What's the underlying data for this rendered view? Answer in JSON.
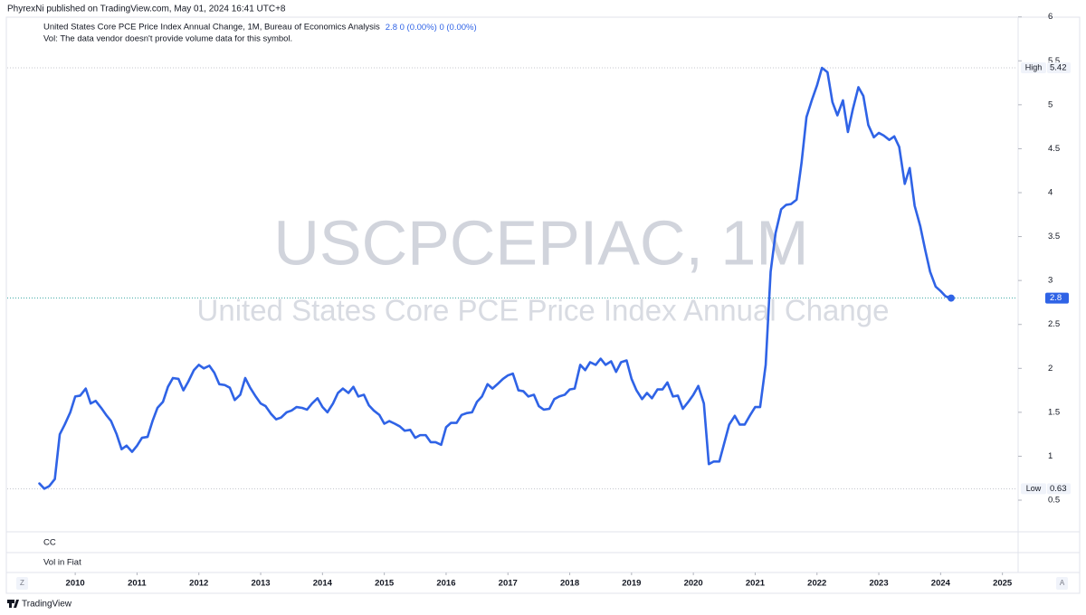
{
  "header": "PhyrexNi published on TradingView.com, May 01, 2024 16:41 UTC+8",
  "chart_data": {
    "type": "line",
    "title": "United States Core PCE Price Index Annual Change, 1M, Bureau of Economics Analysis",
    "legend_stats": [
      "0 (0.00%)",
      "0 (0.00%)"
    ],
    "subtitle": "Vol: The data vendor doesn't provide volume data for this symbol.",
    "watermark": [
      "USCPCEPIAC, 1M",
      "United States Core PCE Price Index Annual Change"
    ],
    "x": [
      2009.42,
      2009.5,
      2009.58,
      2009.67,
      2009.75,
      2009.83,
      2009.92,
      2010,
      2010.08,
      2010.17,
      2010.25,
      2010.33,
      2010.42,
      2010.5,
      2010.58,
      2010.67,
      2010.75,
      2010.83,
      2010.92,
      2011,
      2011.08,
      2011.17,
      2011.25,
      2011.33,
      2011.42,
      2011.5,
      2011.58,
      2011.67,
      2011.75,
      2011.83,
      2011.92,
      2012,
      2012.08,
      2012.17,
      2012.25,
      2012.33,
      2012.42,
      2012.5,
      2012.58,
      2012.67,
      2012.75,
      2012.83,
      2012.92,
      2013,
      2013.08,
      2013.17,
      2013.25,
      2013.33,
      2013.42,
      2013.5,
      2013.58,
      2013.67,
      2013.75,
      2013.83,
      2013.92,
      2014,
      2014.08,
      2014.17,
      2014.25,
      2014.33,
      2014.42,
      2014.5,
      2014.58,
      2014.67,
      2014.75,
      2014.83,
      2014.92,
      2015,
      2015.08,
      2015.17,
      2015.25,
      2015.33,
      2015.42,
      2015.5,
      2015.58,
      2015.67,
      2015.75,
      2015.83,
      2015.92,
      2016,
      2016.08,
      2016.17,
      2016.25,
      2016.33,
      2016.42,
      2016.5,
      2016.58,
      2016.67,
      2016.75,
      2016.83,
      2016.92,
      2017,
      2017.08,
      2017.17,
      2017.25,
      2017.33,
      2017.42,
      2017.5,
      2017.58,
      2017.67,
      2017.75,
      2017.83,
      2017.92,
      2018,
      2018.08,
      2018.17,
      2018.25,
      2018.33,
      2018.42,
      2018.5,
      2018.58,
      2018.67,
      2018.75,
      2018.83,
      2018.92,
      2019,
      2019.08,
      2019.17,
      2019.25,
      2019.33,
      2019.42,
      2019.5,
      2019.58,
      2019.67,
      2019.75,
      2019.83,
      2019.92,
      2020,
      2020.08,
      2020.17,
      2020.25,
      2020.33,
      2020.42,
      2020.5,
      2020.58,
      2020.67,
      2020.75,
      2020.83,
      2020.92,
      2021,
      2021.08,
      2021.17,
      2021.25,
      2021.33,
      2021.42,
      2021.5,
      2021.58,
      2021.67,
      2021.75,
      2021.83,
      2021.92,
      2022,
      2022.08,
      2022.17,
      2022.25,
      2022.33,
      2022.42,
      2022.5,
      2022.58,
      2022.67,
      2022.75,
      2022.83,
      2022.92,
      2023,
      2023.08,
      2023.17,
      2023.25,
      2023.33,
      2023.42,
      2023.5,
      2023.58,
      2023.67,
      2023.75,
      2023.83,
      2023.92,
      2024,
      2024.08,
      2024.17
    ],
    "series": [
      {
        "color": "#2f63e6",
        "values": [
          0.69,
          0.63,
          0.66,
          0.74,
          1.25,
          1.36,
          1.5,
          1.68,
          1.69,
          1.77,
          1.6,
          1.63,
          1.55,
          1.47,
          1.4,
          1.25,
          1.08,
          1.12,
          1.05,
          1.12,
          1.21,
          1.22,
          1.4,
          1.55,
          1.62,
          1.79,
          1.89,
          1.88,
          1.75,
          1.85,
          1.98,
          2.04,
          2.0,
          2.03,
          1.95,
          1.82,
          1.81,
          1.78,
          1.64,
          1.7,
          1.89,
          1.78,
          1.68,
          1.6,
          1.57,
          1.48,
          1.42,
          1.44,
          1.5,
          1.52,
          1.56,
          1.55,
          1.53,
          1.6,
          1.66,
          1.56,
          1.5,
          1.6,
          1.72,
          1.77,
          1.72,
          1.79,
          1.68,
          1.7,
          1.58,
          1.52,
          1.47,
          1.37,
          1.4,
          1.37,
          1.34,
          1.29,
          1.3,
          1.21,
          1.24,
          1.24,
          1.16,
          1.16,
          1.13,
          1.33,
          1.38,
          1.38,
          1.47,
          1.49,
          1.5,
          1.62,
          1.68,
          1.82,
          1.77,
          1.82,
          1.88,
          1.92,
          1.94,
          1.75,
          1.74,
          1.68,
          1.7,
          1.57,
          1.53,
          1.54,
          1.65,
          1.68,
          1.7,
          1.76,
          1.77,
          2.04,
          1.98,
          2.07,
          2.04,
          2.11,
          2.04,
          2.08,
          1.96,
          2.07,
          2.09,
          1.88,
          1.75,
          1.65,
          1.72,
          1.66,
          1.76,
          1.76,
          1.84,
          1.68,
          1.69,
          1.54,
          1.62,
          1.7,
          1.8,
          1.6,
          0.91,
          0.94,
          0.94,
          1.15,
          1.36,
          1.46,
          1.36,
          1.36,
          1.47,
          1.56,
          1.56,
          2.04,
          3.1,
          3.54,
          3.81,
          3.86,
          3.87,
          3.92,
          4.34,
          4.86,
          5.06,
          5.22,
          5.42,
          5.37,
          5.03,
          4.88,
          5.05,
          4.69,
          4.95,
          5.2,
          5.1,
          4.77,
          4.63,
          4.68,
          4.65,
          4.6,
          4.64,
          4.52,
          4.1,
          4.28,
          3.85,
          3.62,
          3.35,
          3.1,
          2.93,
          2.88,
          2.82,
          2.8
        ]
      }
    ],
    "xlim": [
      2008.9,
      2025.21
    ],
    "xticks": [
      2010,
      2011,
      2012,
      2013,
      2014,
      2015,
      2016,
      2017,
      2018,
      2019,
      2020,
      2021,
      2022,
      2023,
      2024,
      2025
    ],
    "ylim": [
      0.14,
      6.11
    ],
    "yticks": [
      0.5,
      1,
      1.5,
      2,
      2.5,
      3,
      3.5,
      4,
      4.5,
      5,
      5.5,
      6
    ],
    "high_label": "High",
    "low_label": "Low",
    "panes": [
      "CC",
      "Vol in Fiat"
    ],
    "grid": false
  },
  "footer": {
    "brand": "TradingView",
    "scale_buttons": [
      "Z",
      "A"
    ]
  }
}
